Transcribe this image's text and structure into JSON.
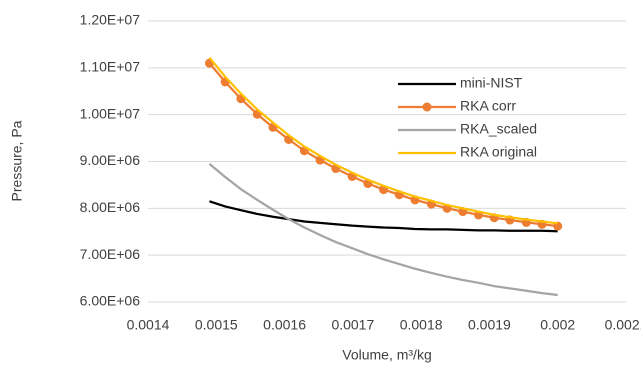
{
  "chart_data": {
    "type": "line",
    "x_label": "Volume, m³/kg",
    "y_label": "Pressure, Pa",
    "x": [
      0.00149,
      0.001513,
      0.001536,
      0.00156,
      0.001583,
      0.001606,
      0.001629,
      0.001652,
      0.001675,
      0.001699,
      0.001722,
      0.001745,
      0.001768,
      0.001791,
      0.001815,
      0.001838,
      0.001861,
      0.001884,
      0.001907,
      0.00193,
      0.001954,
      0.001977,
      0.002
    ],
    "series": [
      {
        "name": "mini-NIST",
        "color": "#000000",
        "marker": false,
        "values": [
          8150000,
          8040000,
          7960000,
          7880000,
          7820000,
          7770000,
          7720000,
          7690000,
          7660000,
          7630000,
          7610000,
          7590000,
          7580000,
          7560000,
          7550000,
          7550000,
          7540000,
          7530000,
          7530000,
          7520000,
          7520000,
          7520000,
          7510000
        ]
      },
      {
        "name": "RKA corr",
        "color": "#ED7D31",
        "marker": true,
        "values": [
          11100000,
          10700000,
          10340000,
          10010000,
          9730000,
          9470000,
          9230000,
          9030000,
          8850000,
          8680000,
          8530000,
          8400000,
          8290000,
          8180000,
          8090000,
          8000000,
          7930000,
          7860000,
          7800000,
          7750000,
          7700000,
          7660000,
          7620000
        ]
      },
      {
        "name": "RKA_scaled",
        "color": "#A5A5A5",
        "marker": false,
        "values": [
          8950000,
          8670000,
          8410000,
          8180000,
          7970000,
          7770000,
          7590000,
          7430000,
          7280000,
          7150000,
          7020000,
          6910000,
          6810000,
          6710000,
          6620000,
          6540000,
          6470000,
          6410000,
          6340000,
          6290000,
          6240000,
          6190000,
          6150000
        ]
      },
      {
        "name": "RKA original",
        "color": "#FFC000",
        "marker": false,
        "values": [
          11220000,
          10810000,
          10450000,
          10110000,
          9830000,
          9560000,
          9320000,
          9120000,
          8930000,
          8760000,
          8610000,
          8480000,
          8360000,
          8250000,
          8160000,
          8070000,
          8000000,
          7930000,
          7860000,
          7810000,
          7760000,
          7720000,
          7680000
        ]
      }
    ],
    "xlim": [
      0.0014,
      0.0021
    ],
    "xticks": [
      0.0014,
      0.0015,
      0.0016,
      0.0017,
      0.0018,
      0.0019,
      0.002,
      0.0021
    ],
    "ylim": [
      6000000,
      12000000
    ],
    "yticks": [
      {
        "value": 6000000,
        "label": "6.00E+06"
      },
      {
        "value": 7000000,
        "label": "7.00E+06"
      },
      {
        "value": 8000000,
        "label": "8.00E+06"
      },
      {
        "value": 9000000,
        "label": "9.00E+06"
      },
      {
        "value": 10000000,
        "label": "1.00E+07"
      },
      {
        "value": 11000000,
        "label": "1.10E+07"
      },
      {
        "value": 12000000,
        "label": "1.20E+07"
      }
    ],
    "grid": true,
    "legend": "right"
  }
}
